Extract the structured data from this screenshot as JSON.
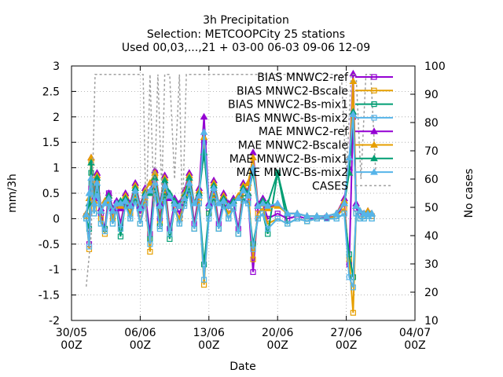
{
  "chart_data": {
    "type": "line",
    "title": [
      "3h Precipitation",
      "Selection: METCOOPCity     25 stations",
      "Used 00,03,...,21 + 03-00 06-03 09-06 12-09"
    ],
    "xlabel": "Date",
    "ylabel": "mm/3h",
    "y2label": "No cases",
    "xlim": [
      0,
      35
    ],
    "ylim": [
      -2,
      3
    ],
    "y2lim": [
      10,
      100
    ],
    "x_ticks": [
      {
        "x": 0,
        "label": "30/05",
        "sub": "00Z"
      },
      {
        "x": 7,
        "label": "06/06",
        "sub": "00Z"
      },
      {
        "x": 14,
        "label": "13/06",
        "sub": "00Z"
      },
      {
        "x": 21,
        "label": "20/06",
        "sub": "00Z"
      },
      {
        "x": 28,
        "label": "27/06",
        "sub": "00Z"
      },
      {
        "x": 35,
        "label": "04/07",
        "sub": "00Z"
      }
    ],
    "y_ticks": [
      "-2",
      "-1.5",
      "-1",
      "-0.5",
      "0",
      "0.5",
      "1",
      "1.5",
      "2",
      "2.5",
      "3"
    ],
    "y2_ticks": [
      "10",
      "20",
      "30",
      "40",
      "50",
      "60",
      "70",
      "80",
      "90",
      "100"
    ],
    "grid": true,
    "legend_position": "top-right",
    "series": [
      {
        "name": "BIAS MNWC2-ref",
        "color": "#9400d3",
        "marker": "square",
        "axis": "y",
        "x": [
          1.5,
          1.8,
          2.0,
          2.3,
          2.6,
          3.0,
          3.4,
          3.8,
          4.2,
          4.6,
          5.0,
          5.5,
          6.0,
          6.5,
          7.0,
          7.5,
          8.0,
          8.5,
          9.0,
          9.5,
          10.0,
          10.5,
          11.0,
          11.5,
          12.0,
          12.5,
          13.0,
          13.5,
          14.0,
          14.5,
          15.0,
          15.5,
          16.0,
          16.5,
          17.0,
          17.5,
          18.0,
          18.5,
          19.0,
          19.5,
          20.0,
          21.0,
          22.0,
          23.0,
          24.0,
          25.0,
          26.0,
          27.0,
          27.8,
          28.3,
          28.7,
          29.0,
          29.4,
          29.8,
          30.2,
          30.6
        ],
        "y": [
          0.05,
          -0.5,
          0.6,
          0.3,
          0.8,
          0.1,
          -0.2,
          0.5,
          0.1,
          0.3,
          -0.1,
          0.4,
          0.2,
          0.6,
          0.1,
          0.5,
          -0.3,
          0.9,
          0.0,
          0.7,
          -0.2,
          0.3,
          0.1,
          0.4,
          0.8,
          -0.1,
          0.5,
          1.5,
          0.2,
          0.6,
          -0.1,
          0.4,
          0.2,
          0.3,
          -0.2,
          0.6,
          0.4,
          -1.05,
          0.2,
          0.3,
          0.0,
          0.1,
          0.0,
          0.05,
          0.0,
          0.0,
          0.02,
          0.05,
          0.3,
          -0.9,
          2.0,
          0.2,
          0.1,
          0.05,
          0.1,
          0.05
        ]
      },
      {
        "name": "BIAS MNWC2-Bscale",
        "color": "#e69f00",
        "marker": "square",
        "axis": "y",
        "x": [
          1.5,
          1.8,
          2.0,
          2.3,
          2.6,
          3.0,
          3.4,
          3.8,
          4.2,
          4.6,
          5.0,
          5.5,
          6.0,
          6.5,
          7.0,
          7.5,
          8.0,
          8.5,
          9.0,
          9.5,
          10.0,
          10.5,
          11.0,
          11.5,
          12.0,
          12.5,
          13.0,
          13.5,
          14.0,
          14.5,
          15.0,
          15.5,
          16.0,
          16.5,
          17.0,
          17.5,
          18.0,
          18.5,
          19.0,
          19.5,
          20.0,
          21.0,
          22.0,
          23.0,
          24.0,
          25.0,
          26.0,
          27.0,
          27.8,
          28.3,
          28.7,
          29.0,
          29.4,
          29.8,
          30.2,
          30.6
        ],
        "y": [
          0.05,
          -0.6,
          1.1,
          0.2,
          0.7,
          0.0,
          -0.3,
          0.4,
          0.0,
          0.2,
          -0.2,
          0.3,
          0.1,
          0.5,
          -0.1,
          0.4,
          -0.65,
          0.8,
          -0.1,
          0.6,
          -0.3,
          0.2,
          0.0,
          0.3,
          0.7,
          -0.2,
          0.4,
          -1.3,
          0.1,
          0.5,
          -0.2,
          0.3,
          0.1,
          0.2,
          -0.3,
          0.5,
          0.6,
          -0.8,
          0.1,
          0.2,
          -0.1,
          0.0,
          -0.1,
          0.0,
          -0.05,
          0.0,
          0.0,
          0.05,
          0.2,
          -0.8,
          -1.85,
          0.1,
          0.0,
          0.05,
          0.1,
          0.05
        ]
      },
      {
        "name": "BIAS MNWC2-Bs-mix1",
        "color": "#009e73",
        "marker": "square",
        "axis": "y",
        "x": [
          1.5,
          1.8,
          2.0,
          2.3,
          2.6,
          3.0,
          3.4,
          3.8,
          4.2,
          4.6,
          5.0,
          5.5,
          6.0,
          6.5,
          7.0,
          7.5,
          8.0,
          8.5,
          9.0,
          9.5,
          10.0,
          10.5,
          11.0,
          11.5,
          12.0,
          12.5,
          13.0,
          13.5,
          14.0,
          14.5,
          15.0,
          15.5,
          16.0,
          16.5,
          17.0,
          17.5,
          18.0,
          18.5,
          19.0,
          19.5,
          20.0,
          21.0,
          22.0,
          23.0,
          24.0,
          25.0,
          26.0,
          27.0,
          27.8,
          28.3,
          28.7,
          29.0,
          29.4,
          29.8,
          30.2,
          30.6
        ],
        "y": [
          0.0,
          -0.2,
          0.9,
          0.1,
          0.6,
          -0.1,
          -0.2,
          0.3,
          -0.1,
          0.2,
          -0.35,
          0.3,
          0.0,
          0.4,
          -0.1,
          0.3,
          -0.4,
          0.6,
          -0.15,
          0.5,
          -0.4,
          0.2,
          -0.1,
          0.3,
          0.6,
          -0.2,
          0.3,
          -0.9,
          0.1,
          0.4,
          -0.2,
          0.3,
          0.0,
          0.2,
          -0.3,
          0.4,
          0.3,
          -0.5,
          0.0,
          0.1,
          -0.3,
          0.9,
          -0.1,
          0.0,
          -0.05,
          0.0,
          0.0,
          0.0,
          0.1,
          -0.7,
          -1.15,
          0.1,
          0.0,
          0.0,
          0.05,
          0.0
        ]
      },
      {
        "name": "BIAS MNWC-Bs-mix2",
        "color": "#56b4e9",
        "marker": "square",
        "axis": "y",
        "x": [
          1.5,
          1.8,
          2.0,
          2.3,
          2.6,
          3.0,
          3.4,
          3.8,
          4.2,
          4.6,
          5.0,
          5.5,
          6.0,
          6.5,
          7.0,
          7.5,
          8.0,
          8.5,
          9.0,
          9.5,
          10.0,
          10.5,
          11.0,
          11.5,
          12.0,
          12.5,
          13.0,
          13.5,
          14.0,
          14.5,
          15.0,
          15.5,
          16.0,
          16.5,
          17.0,
          17.5,
          18.0,
          18.5,
          19.0,
          19.5,
          20.0,
          21.0,
          22.0,
          23.0,
          24.0,
          25.0,
          26.0,
          27.0,
          27.8,
          28.3,
          28.7,
          29.0,
          29.4,
          29.8,
          30.2,
          30.6
        ],
        "y": [
          0.0,
          -0.55,
          0.7,
          0.1,
          0.5,
          -0.1,
          -0.25,
          0.3,
          -0.1,
          0.2,
          -0.2,
          0.25,
          0.0,
          0.35,
          -0.1,
          0.3,
          -0.5,
          0.5,
          -0.2,
          0.4,
          -0.3,
          0.2,
          -0.1,
          0.25,
          0.5,
          -0.2,
          0.3,
          -1.2,
          0.0,
          0.35,
          -0.2,
          0.25,
          0.0,
          0.2,
          -0.3,
          0.35,
          0.3,
          -0.6,
          0.0,
          0.1,
          -0.2,
          0.0,
          -0.1,
          0.0,
          -0.05,
          0.0,
          0.0,
          0.0,
          0.1,
          -1.15,
          -1.35,
          0.1,
          0.0,
          0.0,
          0.05,
          0.0
        ]
      },
      {
        "name": "MAE MNWC2-ref",
        "color": "#9400d3",
        "marker": "triangle",
        "axis": "y",
        "x": [
          1.5,
          1.8,
          2.0,
          2.3,
          2.6,
          3.0,
          3.4,
          3.8,
          4.2,
          4.6,
          5.0,
          5.5,
          6.0,
          6.5,
          7.0,
          7.5,
          8.0,
          8.5,
          9.0,
          9.5,
          10.0,
          10.5,
          11.0,
          11.5,
          12.0,
          12.5,
          13.0,
          13.5,
          14.0,
          14.5,
          15.0,
          15.5,
          16.0,
          16.5,
          17.0,
          17.5,
          18.0,
          18.5,
          19.0,
          19.5,
          20.0,
          21.0,
          22.0,
          23.0,
          24.0,
          25.0,
          26.0,
          27.0,
          27.8,
          28.3,
          28.7,
          29.0,
          29.4,
          29.8,
          30.2,
          30.6
        ],
        "y": [
          0.1,
          0.3,
          1.2,
          0.4,
          0.9,
          0.2,
          0.3,
          0.5,
          0.2,
          0.35,
          0.2,
          0.5,
          0.3,
          0.7,
          0.25,
          0.6,
          0.5,
          0.95,
          0.3,
          0.85,
          0.4,
          0.4,
          0.3,
          0.55,
          0.9,
          0.3,
          0.6,
          2.0,
          0.3,
          0.75,
          0.3,
          0.5,
          0.3,
          0.4,
          0.4,
          0.7,
          0.5,
          1.3,
          0.3,
          0.4,
          0.2,
          0.3,
          0.1,
          0.1,
          0.05,
          0.05,
          0.05,
          0.1,
          0.4,
          1.0,
          2.85,
          0.3,
          0.15,
          0.1,
          0.15,
          0.1
        ]
      },
      {
        "name": "MAE MNWC2-Bscale",
        "color": "#e69f00",
        "marker": "triangle",
        "axis": "y",
        "x": [
          1.5,
          1.8,
          2.0,
          2.3,
          2.6,
          3.0,
          3.4,
          3.8,
          4.2,
          4.6,
          5.0,
          5.5,
          6.0,
          6.5,
          7.0,
          7.5,
          8.0,
          8.5,
          9.0,
          9.5,
          10.0,
          10.5,
          11.0,
          11.5,
          12.0,
          12.5,
          13.0,
          13.5,
          14.0,
          14.5,
          15.0,
          15.5,
          16.0,
          16.5,
          17.0,
          17.5,
          18.0,
          18.5,
          19.0,
          19.5,
          20.0,
          21.0,
          22.0,
          23.0,
          24.0,
          25.0,
          26.0,
          27.0,
          27.8,
          28.3,
          28.7,
          29.0,
          29.4,
          29.8,
          30.2,
          30.6
        ],
        "y": [
          0.1,
          0.4,
          1.2,
          0.35,
          0.85,
          0.15,
          0.35,
          0.45,
          0.15,
          0.3,
          0.25,
          0.45,
          0.25,
          0.65,
          0.2,
          0.55,
          0.7,
          0.9,
          0.25,
          0.8,
          0.45,
          0.35,
          0.25,
          0.5,
          0.85,
          0.3,
          0.55,
          1.6,
          0.25,
          0.7,
          0.3,
          0.45,
          0.25,
          0.35,
          0.45,
          0.65,
          0.7,
          1.2,
          0.25,
          0.35,
          0.2,
          0.25,
          0.1,
          0.1,
          0.05,
          0.05,
          0.05,
          0.1,
          0.35,
          0.9,
          2.7,
          0.25,
          0.15,
          0.1,
          0.15,
          0.1
        ]
      },
      {
        "name": "MAE MNWC2-Bs-mix1",
        "color": "#009e73",
        "marker": "triangle",
        "axis": "y",
        "x": [
          1.5,
          1.8,
          2.0,
          2.3,
          2.6,
          3.0,
          3.4,
          3.8,
          4.2,
          4.6,
          5.0,
          5.5,
          6.0,
          6.5,
          7.0,
          7.5,
          8.0,
          8.5,
          9.0,
          9.5,
          10.0,
          10.5,
          11.0,
          11.5,
          12.0,
          12.5,
          13.0,
          13.5,
          14.0,
          14.5,
          15.0,
          15.5,
          16.0,
          16.5,
          17.0,
          17.5,
          18.0,
          18.5,
          19.0,
          19.5,
          20.0,
          21.0,
          22.0,
          23.0,
          24.0,
          25.0,
          26.0,
          27.0,
          27.8,
          28.3,
          28.7,
          29.0,
          29.4,
          29.8,
          30.2,
          30.6
        ],
        "y": [
          0.08,
          0.3,
          1.1,
          0.3,
          0.8,
          0.15,
          0.3,
          0.45,
          0.15,
          0.3,
          0.35,
          0.4,
          0.25,
          0.6,
          0.2,
          0.5,
          0.5,
          0.8,
          0.25,
          0.75,
          0.5,
          0.35,
          0.25,
          0.45,
          0.8,
          0.3,
          0.5,
          1.3,
          0.25,
          0.65,
          0.3,
          0.4,
          0.25,
          0.35,
          0.4,
          0.6,
          0.5,
          0.9,
          0.25,
          0.35,
          0.3,
          0.9,
          0.1,
          0.1,
          0.05,
          0.05,
          0.05,
          0.1,
          0.3,
          0.9,
          2.1,
          0.25,
          0.15,
          0.1,
          0.1,
          0.1
        ]
      },
      {
        "name": "MAE MNWC-Bs-mix2",
        "color": "#56b4e9",
        "marker": "triangle",
        "axis": "y",
        "x": [
          1.5,
          1.8,
          2.0,
          2.3,
          2.6,
          3.0,
          3.4,
          3.8,
          4.2,
          4.6,
          5.0,
          5.5,
          6.0,
          6.5,
          7.0,
          7.5,
          8.0,
          8.5,
          9.0,
          9.5,
          10.0,
          10.5,
          11.0,
          11.5,
          12.0,
          12.5,
          13.0,
          13.5,
          14.0,
          14.5,
          15.0,
          15.5,
          16.0,
          16.5,
          17.0,
          17.5,
          18.0,
          18.5,
          19.0,
          19.5,
          20.0,
          21.0,
          22.0,
          23.0,
          24.0,
          25.0,
          26.0,
          27.0,
          27.8,
          28.3,
          28.7,
          29.0,
          29.4,
          29.8,
          30.2,
          30.6
        ],
        "y": [
          0.08,
          0.5,
          0.8,
          0.3,
          0.7,
          0.15,
          0.3,
          0.4,
          0.15,
          0.3,
          0.3,
          0.35,
          0.25,
          0.55,
          0.2,
          0.45,
          0.55,
          0.7,
          0.25,
          0.65,
          0.45,
          0.3,
          0.25,
          0.4,
          0.7,
          0.3,
          0.45,
          1.7,
          0.25,
          0.6,
          0.3,
          0.35,
          0.25,
          0.3,
          0.4,
          0.55,
          0.45,
          1.0,
          0.25,
          0.3,
          0.25,
          0.3,
          0.1,
          0.1,
          0.05,
          0.05,
          0.05,
          0.1,
          0.3,
          1.2,
          2.05,
          0.25,
          0.15,
          0.1,
          0.1,
          0.1
        ]
      },
      {
        "name": "CASES",
        "color": "#a0a0a0",
        "marker": "none",
        "dash": true,
        "axis": "y2",
        "x": [
          1.5,
          2.0,
          2.4,
          2.8,
          3.5,
          4.5,
          5.5,
          6.5,
          7.3,
          7.6,
          8.0,
          8.4,
          8.8,
          9.2,
          9.5,
          10.0,
          10.5,
          11.0,
          11.3,
          11.7,
          12.0,
          12.5,
          13.0,
          13.5,
          14.0,
          14.5,
          15.0,
          15.5,
          16.0,
          16.5,
          17.0,
          17.5,
          18.0,
          18.5,
          19.0,
          20.0,
          21.0,
          22.0,
          23.0,
          24.0,
          25.0,
          26.0,
          27.0,
          27.5,
          28.0,
          28.5,
          29.0,
          29.5,
          30.0,
          30.5,
          31.0
        ],
        "y": [
          22,
          40,
          97,
          97,
          97,
          97,
          97,
          97,
          97,
          45,
          97,
          50,
          97,
          55,
          97,
          97,
          60,
          97,
          45,
          97,
          97,
          97,
          97,
          97,
          97,
          97,
          97,
          97,
          97,
          97,
          97,
          97,
          97,
          97,
          97,
          97,
          97,
          97,
          97,
          97,
          97,
          97,
          97,
          97,
          60,
          97,
          97,
          60,
          97,
          97,
          62
        ]
      }
    ]
  }
}
